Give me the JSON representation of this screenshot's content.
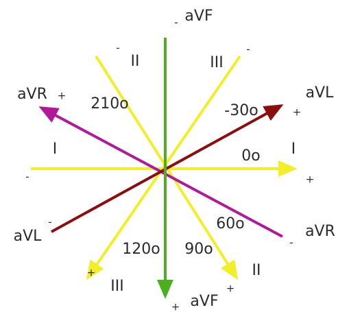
{
  "labels": [
    {
      "text": "aVF"
    },
    {
      "text": "-"
    },
    {
      "text": "II"
    },
    {
      "text": "-"
    },
    {
      "text": "III"
    },
    {
      "text": "-"
    },
    {
      "text": "aVR"
    },
    {
      "text": "+"
    },
    {
      "text": "210o"
    },
    {
      "text": "aVL"
    },
    {
      "text": "+"
    },
    {
      "text": "-30o"
    },
    {
      "text": "I"
    },
    {
      "text": "-"
    },
    {
      "text": "0o"
    },
    {
      "text": "I"
    },
    {
      "text": "+"
    },
    {
      "text": "aVL"
    },
    {
      "text": "-"
    },
    {
      "text": "60o"
    },
    {
      "text": "aVR"
    },
    {
      "text": "-"
    },
    {
      "text": "120o"
    },
    {
      "text": "90o"
    },
    {
      "text": "+"
    },
    {
      "text": "III"
    },
    {
      "text": "II"
    },
    {
      "text": "+"
    },
    {
      "text": "aVF"
    },
    {
      "text": "+"
    }
  ]
}
